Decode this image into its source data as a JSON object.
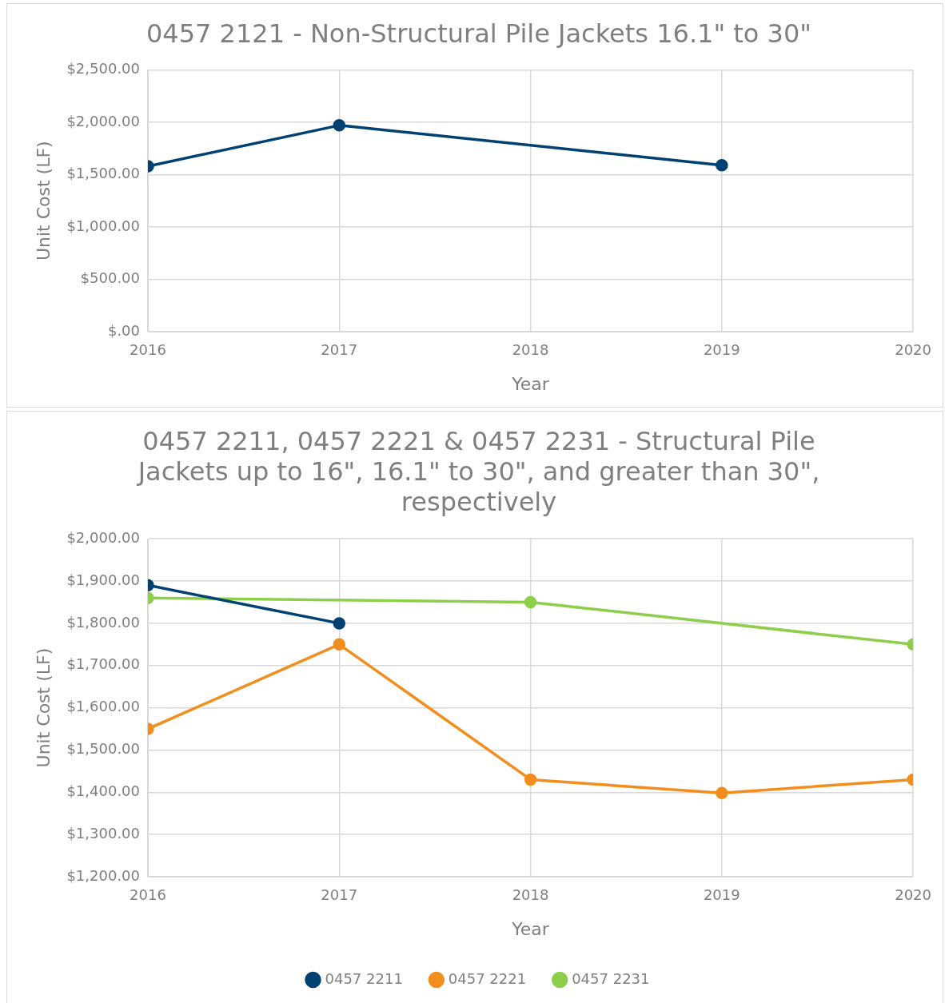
{
  "chart_data": [
    {
      "type": "line",
      "title": "0457 2121 - Non-Structural Pile Jackets 16.1\" to 30\"",
      "xlabel": "Year",
      "ylabel": "Unit Cost (LF)",
      "x": [
        2016,
        2017,
        2019
      ],
      "series": [
        {
          "color": "#004173",
          "values": [
            1580,
            1970,
            1590
          ]
        }
      ],
      "xlim": [
        2016,
        2020
      ],
      "xticks": [
        2016,
        2017,
        2018,
        2019,
        2020
      ],
      "ylim": [
        0,
        2500
      ],
      "yticks": [
        {
          "value": 0,
          "label": "$.00"
        },
        {
          "value": 500,
          "label": "$500.00"
        },
        {
          "value": 1000,
          "label": "$1,000.00"
        },
        {
          "value": 1500,
          "label": "$1,500.00"
        },
        {
          "value": 2000,
          "label": "$2,000.00"
        },
        {
          "value": 2500,
          "label": "$2,500.00"
        }
      ],
      "grid": true,
      "legend": false,
      "marker": "circle",
      "line_style": "solid"
    },
    {
      "type": "line",
      "title": "0457 2211, 0457 2221 & 0457 2231 - Structural Pile Jackets up to 16\", 16.1\" to 30\", and greater than 30\", respectively",
      "xlabel": "Year",
      "ylabel": "Unit Cost (LF)",
      "x": [
        2016,
        2017,
        2018,
        2019,
        2020
      ],
      "series": [
        {
          "name": "0457 2211",
          "color": "#004173",
          "values": [
            1890,
            1800,
            null,
            null,
            null
          ]
        },
        {
          "name": "0457 2221",
          "color": "#f28e1e",
          "values": [
            1550,
            1750,
            1430,
            1398,
            1430
          ]
        },
        {
          "name": "0457 2231",
          "color": "#8dcf4b",
          "values": [
            1860,
            null,
            1850,
            null,
            1750
          ]
        }
      ],
      "xlim": [
        2016,
        2020
      ],
      "xticks": [
        2016,
        2017,
        2018,
        2019,
        2020
      ],
      "ylim": [
        1200,
        2000
      ],
      "yticks": [
        {
          "value": 1200,
          "label": "$1,200.00"
        },
        {
          "value": 1300,
          "label": "$1,300.00"
        },
        {
          "value": 1400,
          "label": "$1,400.00"
        },
        {
          "value": 1500,
          "label": "$1,500.00"
        },
        {
          "value": 1600,
          "label": "$1,600.00"
        },
        {
          "value": 1700,
          "label": "$1,700.00"
        },
        {
          "value": 1800,
          "label": "$1,800.00"
        },
        {
          "value": 1900,
          "label": "$1,900.00"
        },
        {
          "value": 2000,
          "label": "$2,000.00"
        }
      ],
      "grid": true,
      "legend": "bottom",
      "marker": "circle",
      "line_style": "solid"
    }
  ]
}
